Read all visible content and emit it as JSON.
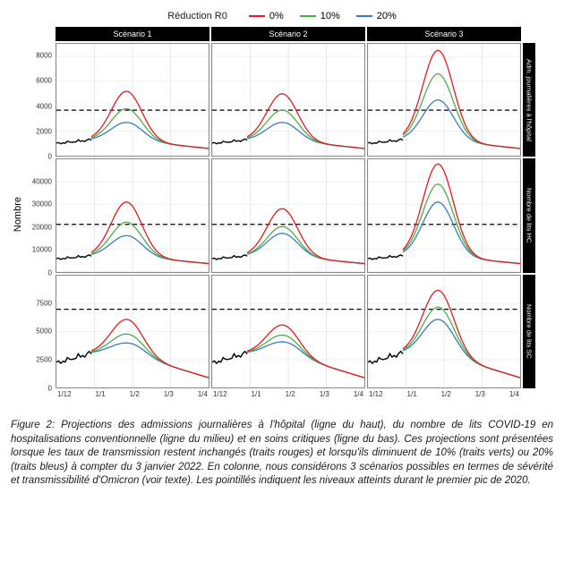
{
  "legend": {
    "title": "Réduction R0",
    "items": [
      {
        "label": "0%",
        "color": "#e41a1c"
      },
      {
        "label": "10%",
        "color": "#4daf4a"
      },
      {
        "label": "20%",
        "color": "#377eb8"
      }
    ]
  },
  "axis": {
    "ylabel": "Nombre",
    "x_ticks": [
      "1/12",
      "1/1",
      "1/2",
      "1/3",
      "1/4"
    ]
  },
  "columns": [
    {
      "title": "Scénario 1"
    },
    {
      "title": "Scénario 2"
    },
    {
      "title": "Scénario 3"
    }
  ],
  "rows": [
    {
      "title": "Adm. journalières à l'hôpital",
      "ymax": 9000,
      "yticks": [
        0,
        2000,
        4000,
        6000,
        8000
      ],
      "dash": 3680
    },
    {
      "title": "Nombre de lits HC",
      "ymax": 50000,
      "yticks": [
        0,
        10000,
        20000,
        30000,
        40000
      ],
      "dash": 21000
    },
    {
      "title": "Nombre de lits SC",
      "ymax": 10000,
      "yticks": [
        0,
        2500,
        5000,
        7500
      ],
      "dash": 7000
    }
  ],
  "style": {
    "observed_color": "#000000",
    "dash_color": "#000000",
    "grid_color": "#e6e6e6",
    "panel_border": "#888888",
    "strip_bg": "#000000",
    "strip_fg": "#ffffff",
    "line_width": 1.3,
    "observed_width": 1.4
  },
  "observed_end_x": 0.23,
  "peaks": {
    "row0": {
      "base_start": 1000,
      "obs_end": 1300,
      "tail": 600,
      "cols": [
        [
          5200,
          3800,
          2700
        ],
        [
          5000,
          3700,
          2700
        ],
        [
          8500,
          6600,
          4500
        ]
      ]
    },
    "row1": {
      "base_start": 5500,
      "obs_end": 7000,
      "tail": 3500,
      "cols": [
        [
          31000,
          22000,
          16000
        ],
        [
          28000,
          20000,
          17000
        ],
        [
          48000,
          39000,
          31000
        ]
      ]
    },
    "row2": {
      "base_start": 2200,
      "obs_end": 3100,
      "tail": 900,
      "cols": [
        [
          6100,
          4800,
          4000
        ],
        [
          5600,
          4700,
          4100
        ],
        [
          8700,
          7200,
          6100
        ]
      ]
    }
  },
  "caption": "Figure 2: Projections des admissions journalières à l'hôpital (ligne du haut), du nombre de lits COVID-19 en hospitalisations conventionnelle (ligne du milieu) et en soins critiques (ligne du bas). Ces projections sont présentées lorsque les taux de transmission restent inchangés (traits rouges) et lorsqu'ils diminuent de 10% (traits verts) ou 20% (traits bleus) à compter du 3 janvier 2022. En colonne, nous considérons 3 scénarios possibles en termes de sévérité et transmissibilité d'Omicron (voir texte). Les pointillés indiquent les niveaux atteints durant le premier pic de 2020."
}
